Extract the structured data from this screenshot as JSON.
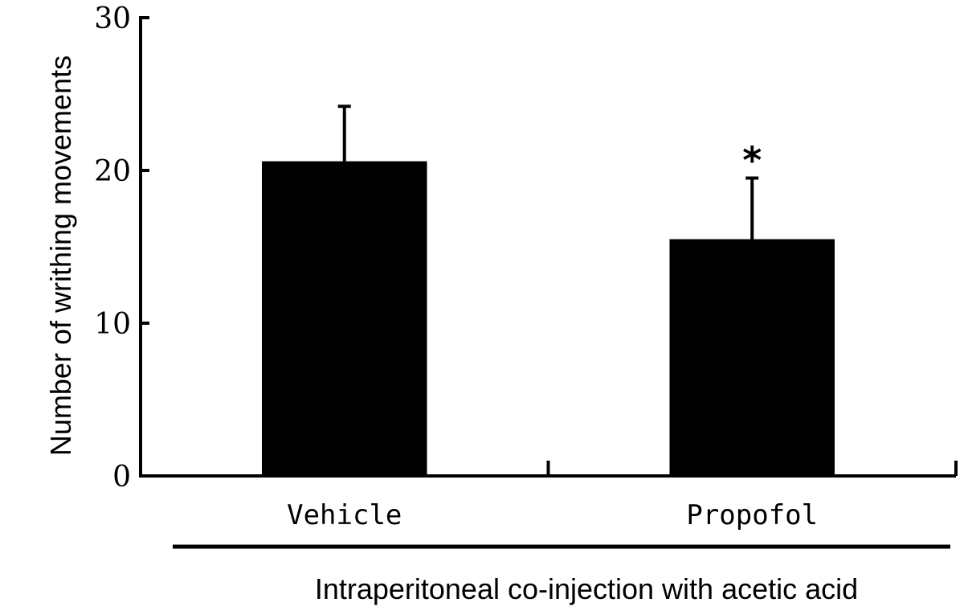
{
  "chart_data": {
    "type": "bar",
    "title": "",
    "categories": [
      "Vehicle",
      "Propofol"
    ],
    "values": [
      20.6,
      15.5
    ],
    "errors": [
      3.6,
      4.0
    ],
    "significance": [
      "",
      "*"
    ],
    "ylabel": "Number of writhing movements",
    "xlabel": "",
    "group_label": "Intraperitoneal co-injection with acetic acid",
    "ylim": [
      0,
      30
    ],
    "yticks": [
      0,
      10,
      20,
      30
    ],
    "grid": false,
    "legend": "none",
    "bar_color": "#000000"
  }
}
